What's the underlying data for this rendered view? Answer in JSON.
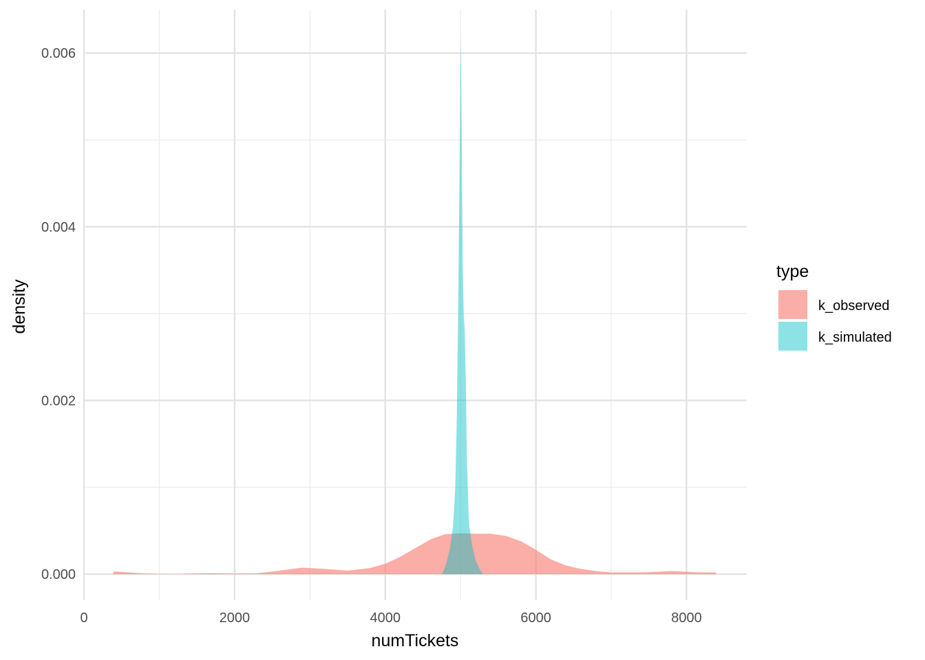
{
  "chart_data": {
    "type": "area",
    "subtype": "density",
    "xlabel": "numTickets",
    "ylabel": "density",
    "xlim": [
      0,
      8800
    ],
    "ylim": [
      -0.0003,
      0.0065
    ],
    "x_ticks": [
      0,
      2000,
      4000,
      6000,
      8000
    ],
    "x_tick_labels": [
      "0",
      "2000",
      "4000",
      "6000",
      "8000"
    ],
    "y_ticks": [
      0.0,
      0.002,
      0.004,
      0.006
    ],
    "y_tick_labels": [
      "0.000",
      "0.002",
      "0.004",
      "0.006"
    ],
    "grid": true,
    "legend": {
      "title": "type",
      "position": "right"
    },
    "series": [
      {
        "name": "k_observed",
        "color": "#F8766D",
        "opacity": 0.6,
        "points": [
          [
            380,
            0.0
          ],
          [
            400,
            3e-05
          ],
          [
            600,
            2e-05
          ],
          [
            800,
            8e-06
          ],
          [
            1000,
            3e-06
          ],
          [
            1200,
            2e-06
          ],
          [
            1500,
            8e-06
          ],
          [
            1700,
            1.2e-05
          ],
          [
            2000,
            6e-06
          ],
          [
            2300,
            1e-05
          ],
          [
            2600,
            4e-05
          ],
          [
            2900,
            7.5e-05
          ],
          [
            3200,
            6e-05
          ],
          [
            3500,
            4e-05
          ],
          [
            3800,
            7e-05
          ],
          [
            4000,
            0.00012
          ],
          [
            4200,
            0.0002
          ],
          [
            4400,
            0.0003
          ],
          [
            4600,
            0.0004
          ],
          [
            4800,
            0.00046
          ],
          [
            5000,
            0.00047
          ],
          [
            5200,
            0.000465
          ],
          [
            5400,
            0.000465
          ],
          [
            5600,
            0.00044
          ],
          [
            5800,
            0.00038
          ],
          [
            6000,
            0.00028
          ],
          [
            6200,
            0.00017
          ],
          [
            6400,
            0.0001
          ],
          [
            6600,
            6e-05
          ],
          [
            6800,
            3.5e-05
          ],
          [
            7000,
            2e-05
          ],
          [
            7400,
            2e-05
          ],
          [
            7800,
            3.5e-05
          ],
          [
            8200,
            2e-05
          ],
          [
            8390,
            2e-05
          ],
          [
            8400,
            0.0
          ]
        ]
      },
      {
        "name": "k_simulated",
        "color": "#00BFC4",
        "opacity": 0.45,
        "points": [
          [
            4750,
            0.0
          ],
          [
            4780,
            5e-05
          ],
          [
            4820,
            0.00015
          ],
          [
            4860,
            0.0003
          ],
          [
            4900,
            0.00055
          ],
          [
            4930,
            0.001
          ],
          [
            4950,
            0.0018
          ],
          [
            4970,
            0.0032
          ],
          [
            4985,
            0.0045
          ],
          [
            4995,
            0.0055
          ],
          [
            5003,
            0.0062
          ],
          [
            5012,
            0.0055
          ],
          [
            5020,
            0.0045
          ],
          [
            5030,
            0.0035
          ],
          [
            5042,
            0.003
          ],
          [
            5055,
            0.0028
          ],
          [
            5070,
            0.0022
          ],
          [
            5085,
            0.0013
          ],
          [
            5110,
            0.0006
          ],
          [
            5150,
            0.00035
          ],
          [
            5200,
            0.00016
          ],
          [
            5250,
            6e-05
          ],
          [
            5300,
            0.0
          ]
        ]
      }
    ]
  }
}
